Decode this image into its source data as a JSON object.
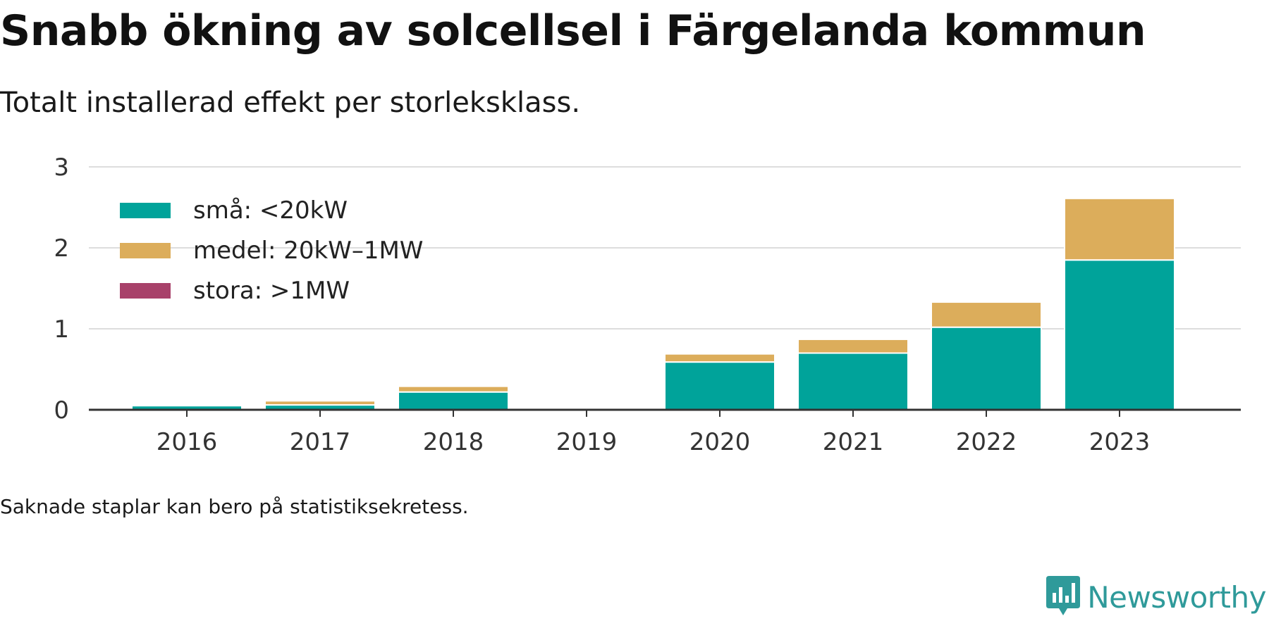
{
  "header": {
    "title": "Snabb ökning av solcellsel i Färgelanda kommun",
    "subtitle": "Totalt installerad effekt per storleksklass."
  },
  "footer": {
    "note": "Saknade staplar kan bero på statistiksekretess.",
    "brand": "Newsworthy",
    "brand_icon": "newsworthy-logo-icon",
    "brand_color": "#2f9a9a"
  },
  "chart_data": {
    "type": "bar",
    "stacked": true,
    "categories": [
      "2016",
      "2017",
      "2018",
      "2019",
      "2020",
      "2021",
      "2022",
      "2023"
    ],
    "series": [
      {
        "name": "små: <20kW",
        "color": "#00a39a",
        "values": [
          0.05,
          0.06,
          0.22,
          0,
          0.59,
          0.7,
          1.02,
          1.85
        ]
      },
      {
        "name": "medel: 20kW–1MW",
        "color": "#dcad5b",
        "values": [
          0,
          0.05,
          0.07,
          0,
          0.1,
          0.17,
          0.31,
          0.76
        ]
      },
      {
        "name": "stora: >1MW",
        "color": "#a8416a",
        "values": [
          0,
          0,
          0,
          0,
          0,
          0,
          0,
          0
        ]
      }
    ],
    "yticks": [
      0,
      1,
      2,
      3
    ],
    "ylim": [
      0,
      3
    ],
    "grid": true,
    "legend_position": "top-left",
    "xlabel": "",
    "ylabel": ""
  }
}
